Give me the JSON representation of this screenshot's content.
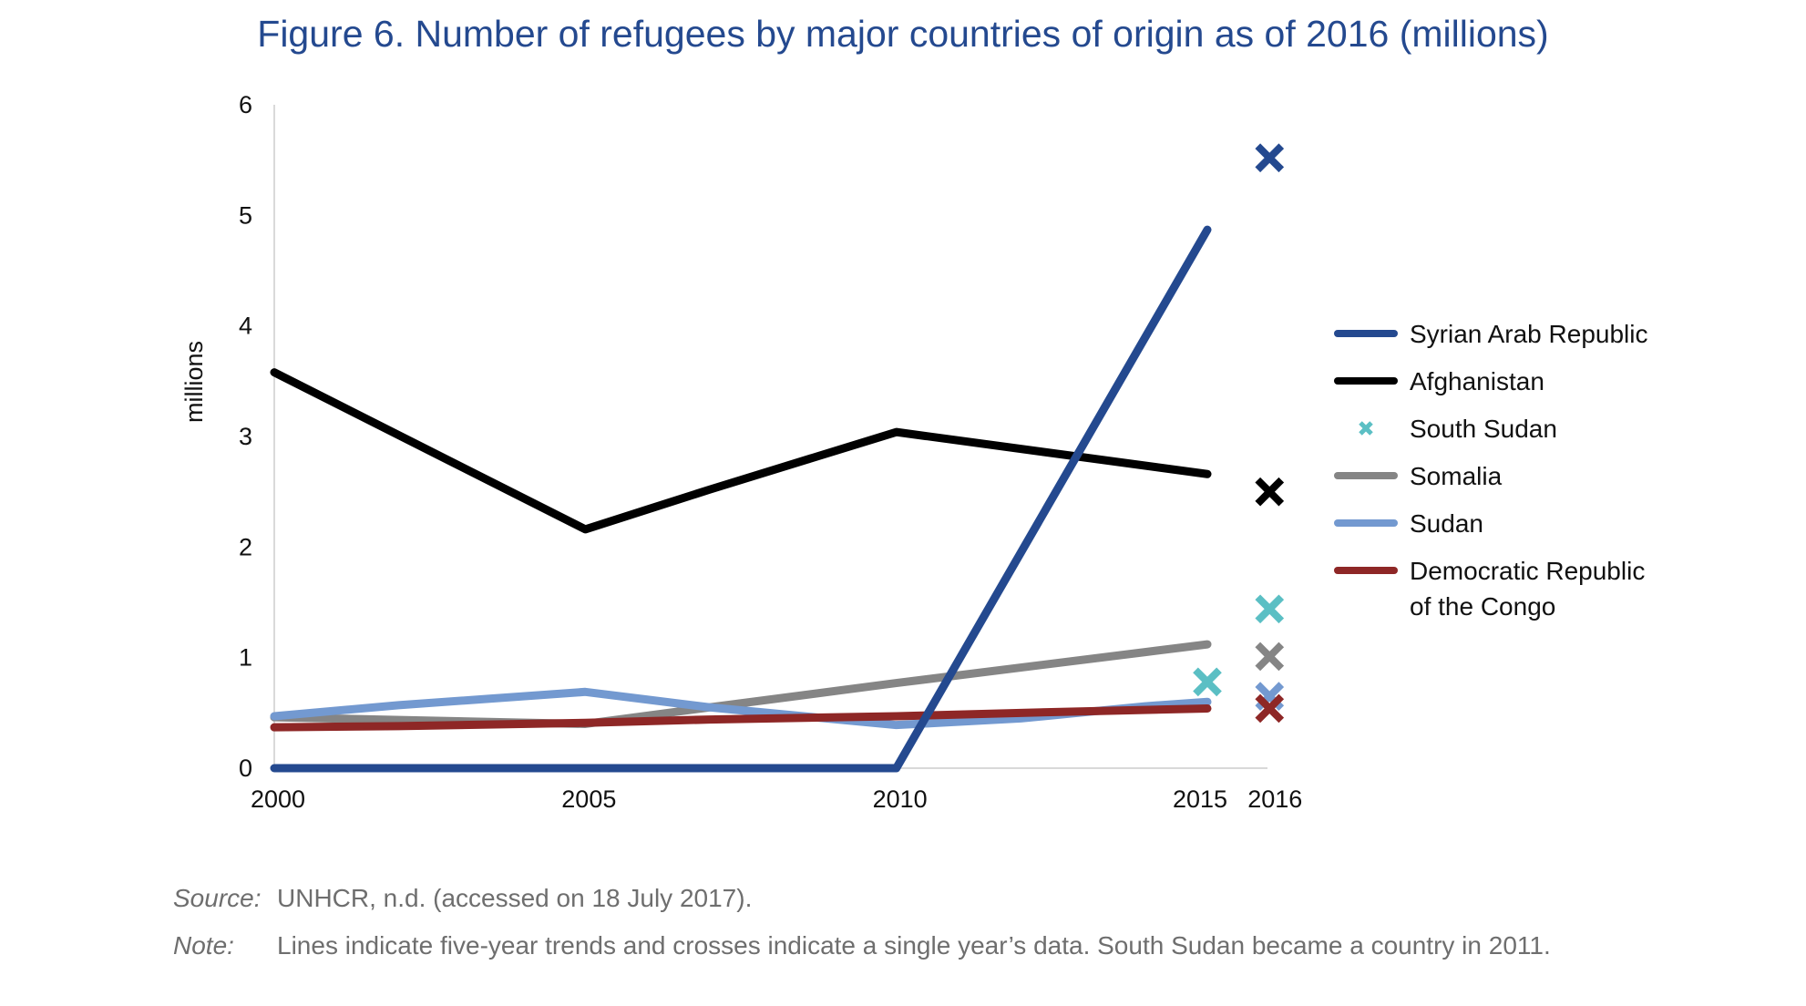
{
  "chart_data": {
    "type": "line",
    "title": "Figure 6. Number of refugees by major countries of origin as of 2016 (millions)",
    "xlabel": "",
    "ylabel": "millions",
    "ylim": [
      0,
      6
    ],
    "yticks": [
      "0",
      "1",
      "2",
      "3",
      "4",
      "5",
      "6"
    ],
    "xlim": [
      2000,
      2016
    ],
    "xticks": [
      {
        "value": 2000,
        "label": "2000"
      },
      {
        "value": 2005,
        "label": "2005"
      },
      {
        "value": 2010,
        "label": "2010"
      },
      {
        "value": 2015,
        "label": "2015"
      },
      {
        "value": 2016,
        "label": "2016"
      }
    ],
    "grid": false,
    "legend_position": "right",
    "series": [
      {
        "name": "Syrian Arab Republic",
        "color": "#24498f",
        "kind": "line",
        "x": [
          2000,
          2005,
          2010,
          2015
        ],
        "values": [
          0.0,
          0.0,
          0.0,
          4.87
        ],
        "cross": [
          {
            "x": 2016,
            "y": 5.52
          }
        ]
      },
      {
        "name": "Afghanistan",
        "color": "#000000",
        "kind": "line",
        "x": [
          2000,
          2005,
          2006,
          2007,
          2010,
          2015
        ],
        "values": [
          3.58,
          2.16,
          2.34,
          2.52,
          3.04,
          2.66
        ],
        "cross": [
          {
            "x": 2016,
            "y": 2.5
          }
        ]
      },
      {
        "name": "South Sudan",
        "color": "#5bbfc4",
        "kind": "cross",
        "x": [],
        "values": [],
        "cross": [
          {
            "x": 2015,
            "y": 0.78
          },
          {
            "x": 2016,
            "y": 1.44
          }
        ]
      },
      {
        "name": "Somalia",
        "color": "#858585",
        "kind": "line",
        "x": [
          2000,
          2005,
          2007,
          2010,
          2014,
          2015
        ],
        "values": [
          0.46,
          0.4,
          0.55,
          0.77,
          1.05,
          1.12
        ],
        "cross": [
          {
            "x": 2016,
            "y": 1.01
          }
        ]
      },
      {
        "name": "Sudan",
        "color": "#7399d0",
        "kind": "line",
        "x": [
          2000,
          2002,
          2005,
          2007,
          2010,
          2012,
          2014,
          2015
        ],
        "values": [
          0.47,
          0.57,
          0.69,
          0.55,
          0.39,
          0.45,
          0.56,
          0.6
        ],
        "cross": [
          {
            "x": 2016,
            "y": 0.65
          }
        ]
      },
      {
        "name": "Democratic Republic of the Congo",
        "color": "#8e2726",
        "kind": "line",
        "x": [
          2000,
          2002,
          2005,
          2007,
          2010,
          2012,
          2015
        ],
        "values": [
          0.37,
          0.38,
          0.41,
          0.44,
          0.47,
          0.5,
          0.54
        ],
        "cross": [
          {
            "x": 2016,
            "y": 0.54
          }
        ]
      }
    ],
    "legend": [
      {
        "label_lines": [
          "Syrian Arab Republic"
        ],
        "color": "#24498f",
        "symbol": "line"
      },
      {
        "label_lines": [
          "Afghanistan"
        ],
        "color": "#000000",
        "symbol": "line"
      },
      {
        "label_lines": [
          "South Sudan"
        ],
        "color": "#5bbfc4",
        "symbol": "cross"
      },
      {
        "label_lines": [
          "Somalia"
        ],
        "color": "#858585",
        "symbol": "line"
      },
      {
        "label_lines": [
          "Sudan"
        ],
        "color": "#7399d0",
        "symbol": "line"
      },
      {
        "label_lines": [
          "Democratic Republic",
          "of the Congo"
        ],
        "color": "#8e2726",
        "symbol": "line"
      }
    ]
  },
  "footnotes": {
    "source_key": "Source:",
    "source_text": "UNHCR, n.d. (accessed on 18 July 2017).",
    "note_key": "Note:",
    "note_text": "Lines indicate five-year trends and crosses indicate a single year’s data. South Sudan became a country in 2011."
  }
}
